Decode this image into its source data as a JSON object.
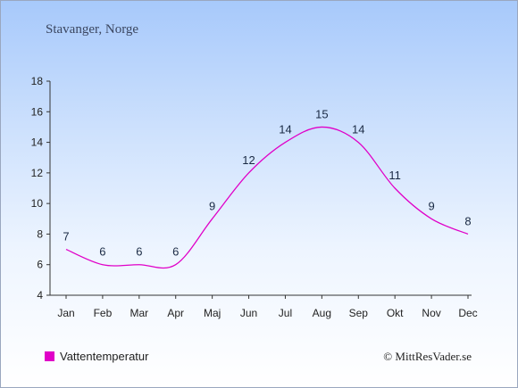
{
  "location": "Stavanger, Norge",
  "credit": "© MittResVader.se",
  "colors": {
    "series": "#e000c8",
    "axis": "#333333"
  },
  "chart_data": {
    "type": "line",
    "categories": [
      "Jan",
      "Feb",
      "Mar",
      "Apr",
      "Maj",
      "Jun",
      "Jul",
      "Aug",
      "Sep",
      "Okt",
      "Nov",
      "Dec"
    ],
    "series": [
      {
        "name": "Vattentemperatur",
        "values": [
          7,
          6,
          6,
          6,
          9,
          12,
          14,
          15,
          14,
          11,
          9,
          8
        ]
      }
    ],
    "ylim": [
      4,
      18
    ],
    "yticks": [
      4,
      6,
      8,
      10,
      12,
      14,
      16,
      18
    ],
    "grid": false,
    "legend": "bottom-left"
  }
}
